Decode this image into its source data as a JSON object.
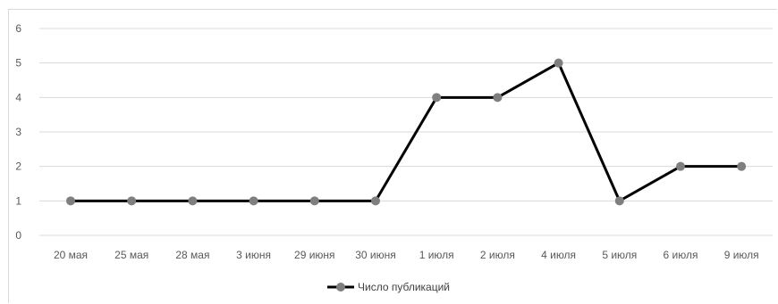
{
  "chart_data": {
    "type": "line",
    "title": "",
    "xlabel": "",
    "ylabel": "",
    "categories": [
      "20 мая",
      "25 мая",
      "28 мая",
      "3 июня",
      "29 июня",
      "30 июня",
      "1 июля",
      "2 июля",
      "4 июля",
      "5 июля",
      "6 июля",
      "9 июля"
    ],
    "series": [
      {
        "name": "Число публикаций",
        "values": [
          1,
          1,
          1,
          1,
          1,
          1,
          4,
          4,
          5,
          1,
          2,
          2
        ]
      }
    ],
    "ylim": [
      0,
      6
    ],
    "yticks": [
      "0",
      "1",
      "2",
      "3",
      "4",
      "5",
      "6"
    ],
    "grid": true,
    "legend_position": "bottom",
    "colors": {
      "line": "#000000",
      "marker": "#7f7f7f",
      "grid": "#d9d9d9",
      "tick_text": "#595959"
    }
  }
}
